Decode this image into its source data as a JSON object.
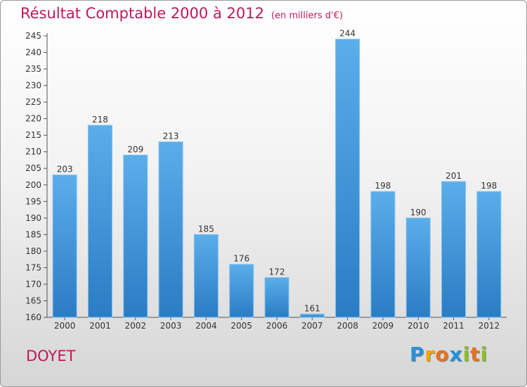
{
  "chart_data": {
    "type": "bar",
    "title": "Résultat Comptable 2000 à 2012",
    "subtitle": "(en milliers d'€)",
    "categories": [
      "2000",
      "2001",
      "2002",
      "2003",
      "2004",
      "2005",
      "2006",
      "2007",
      "2008",
      "2009",
      "2010",
      "2011",
      "2012"
    ],
    "values": [
      203,
      218,
      209,
      213,
      185,
      176,
      172,
      161,
      244,
      198,
      190,
      201,
      198
    ],
    "ylim": [
      160,
      245
    ],
    "yticks": [
      160,
      165,
      170,
      175,
      180,
      185,
      190,
      195,
      200,
      205,
      210,
      215,
      220,
      225,
      230,
      235,
      240,
      245
    ],
    "xlabel": "",
    "ylabel": "",
    "grid": false,
    "bar_color": "#4a9fe0"
  },
  "location": "DOYET",
  "brand": {
    "letters": [
      "P",
      "r",
      "o",
      "x",
      "i",
      "t",
      "i"
    ],
    "colors": [
      "#2a8fd8",
      "#f0a400",
      "#e8711c",
      "#1f93d8",
      "#8cbf26",
      "#e8711c",
      "#8cbf26"
    ]
  }
}
